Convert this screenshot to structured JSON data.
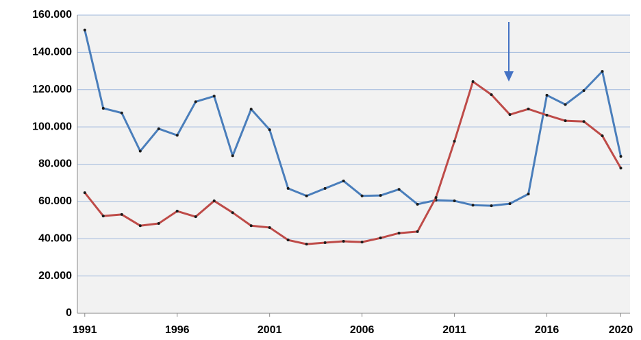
{
  "chart_data": {
    "type": "line",
    "x": [
      1991,
      1992,
      1993,
      1994,
      1995,
      1996,
      1997,
      1998,
      1999,
      2000,
      2001,
      2002,
      2003,
      2004,
      2005,
      2006,
      2007,
      2008,
      2009,
      2010,
      2011,
      2012,
      2013,
      2014,
      2015,
      2016,
      2017,
      2018,
      2019,
      2020
    ],
    "series": [
      {
        "color": "#4a7ebb",
        "values": [
          152000,
          110000,
          107500,
          87000,
          99000,
          95500,
          113500,
          116500,
          84500,
          109500,
          98500,
          67000,
          63000,
          67000,
          71000,
          63000,
          63200,
          66500,
          58500,
          60700,
          60300,
          58000,
          57700,
          58800,
          64000,
          117000,
          112000,
          119500,
          129800,
          84200
        ]
      },
      {
        "color": "#be4b48",
        "values": [
          64700,
          52200,
          53000,
          47000,
          48200,
          54800,
          51800,
          60300,
          54000,
          47000,
          46000,
          39300,
          37100,
          37900,
          38600,
          38200,
          40400,
          43000,
          43800,
          62100,
          92300,
          124300,
          117300,
          106600,
          109600,
          106300,
          103300,
          102900,
          95200,
          77900
        ]
      }
    ],
    "xlim": [
      1990.6,
      2020.5
    ],
    "xticks": [
      1991,
      1996,
      2001,
      2006,
      2011,
      2016,
      2020
    ],
    "ylim": [
      0,
      160000
    ],
    "yticks": [
      0,
      {
        "value": 20000,
        "label": "20.000"
      },
      {
        "value": 40000,
        "label": "40.000"
      },
      {
        "value": 60000,
        "label": "60.000"
      },
      {
        "value": 80000,
        "label": "80.000"
      },
      {
        "value": 100000,
        "label": "100.000"
      },
      {
        "value": 120000,
        "label": "120.000"
      },
      {
        "value": 140000,
        "label": "140.000"
      },
      {
        "value": 160000,
        "label": "160.000"
      }
    ],
    "grid": true
  }
}
